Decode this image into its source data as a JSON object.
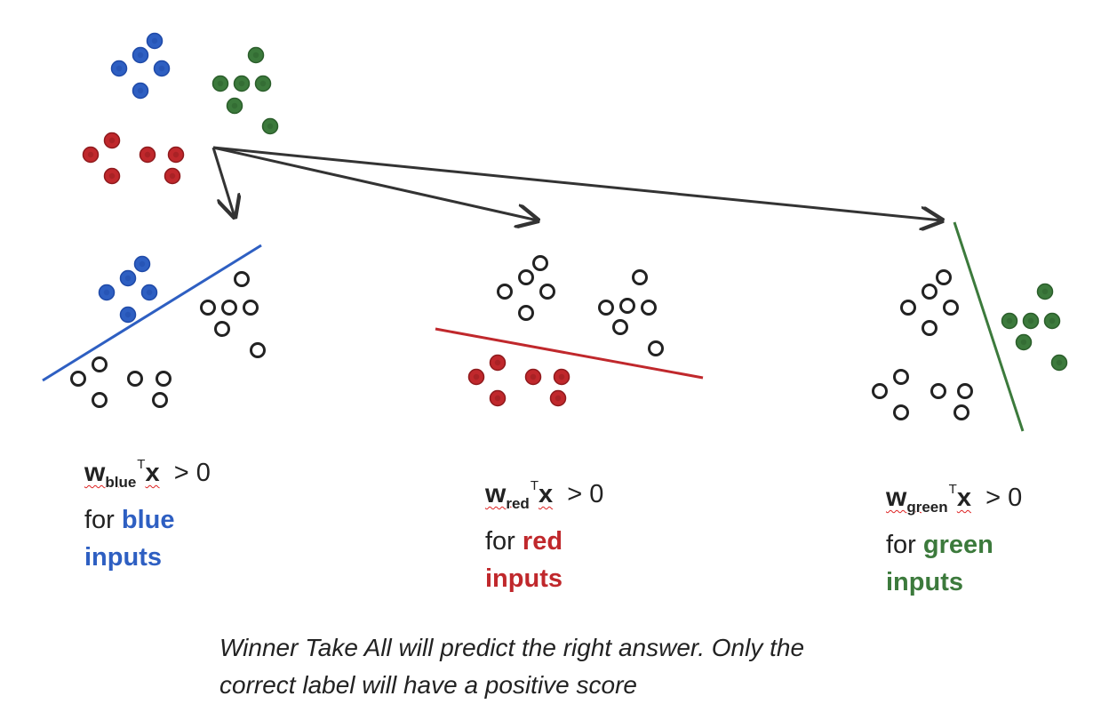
{
  "colors": {
    "blue": "#2e5fc2",
    "red": "#c0282c",
    "green": "#3c7a3c",
    "arrow": "#333333",
    "open": "#222222"
  },
  "panels": [
    {
      "key": "blue",
      "w": "w",
      "sub": "blue",
      "sup": "T",
      "x": "x",
      "rel": "> 0",
      "for": "for",
      "cls": "blue",
      "word": "inputs"
    },
    {
      "key": "red",
      "w": "w",
      "sub": "red",
      "sup": "T",
      "x": "x",
      "rel": "> 0",
      "for": "for",
      "cls": "red",
      "word": "inputs"
    },
    {
      "key": "green",
      "w": "w",
      "sub": "green",
      "sup": "T",
      "x": "x",
      "rel": "> 0",
      "for": "for",
      "cls": "green",
      "word": "inputs"
    }
  ],
  "caption": {
    "line1": "Winner Take All will predict the right answer. Only the",
    "line2": "correct label will have a positive score"
  }
}
